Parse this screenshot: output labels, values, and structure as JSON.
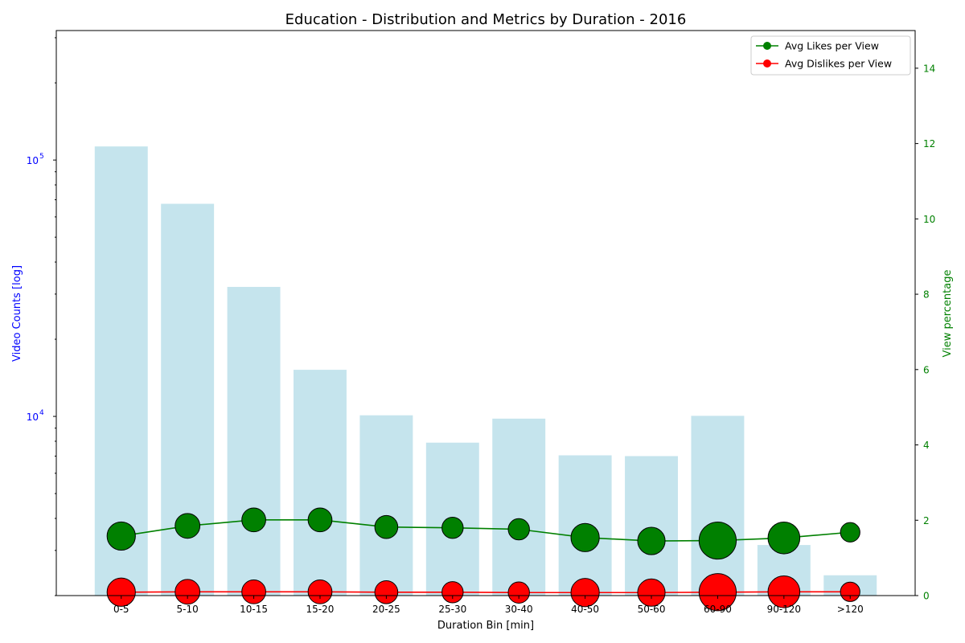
{
  "chart_data": {
    "type": "bar",
    "title": "Education - Distribution and Metrics by Duration - 2016",
    "xlabel": "Duration Bin [min]",
    "ylabel_left": "Video Counts [log]",
    "ylabel_right": "View percentage",
    "left_axis": {
      "scale": "log",
      "ylim": [
        2000,
        320000
      ],
      "major_ticks": [
        10000,
        100000
      ],
      "major_tick_labels": [
        {
          "base": "10",
          "exp": "4"
        },
        {
          "base": "10",
          "exp": "5"
        }
      ],
      "color": "#0000ff"
    },
    "right_axis": {
      "scale": "linear",
      "ylim": [
        0,
        15
      ],
      "ticks": [
        0,
        2,
        4,
        6,
        8,
        10,
        12,
        14
      ],
      "tick_labels": [
        "0",
        "2",
        "4",
        "6",
        "8",
        "10",
        "12",
        "14"
      ],
      "color": "#008000"
    },
    "categories": [
      "0-5",
      "5-10",
      "10-15",
      "15-20",
      "20-25",
      "25-30",
      "30-40",
      "40-50",
      "50-60",
      "60-90",
      "90-120",
      ">120"
    ],
    "bars": {
      "name": "Video Counts",
      "color": "#add8e6",
      "values": [
        113000,
        67500,
        32000,
        15200,
        10100,
        7900,
        9800,
        7050,
        7000,
        10050,
        3150,
        2400
      ]
    },
    "series": [
      {
        "name": "Avg Likes per View",
        "color": "#008000",
        "values": [
          1.58,
          1.85,
          2.01,
          2.01,
          1.82,
          1.8,
          1.76,
          1.54,
          1.45,
          1.46,
          1.53,
          1.68
        ],
        "marker_weight": [
          1.6,
          1.4,
          1.35,
          1.35,
          1.3,
          1.2,
          1.2,
          1.6,
          1.55,
          2.1,
          1.8,
          1.1
        ]
      },
      {
        "name": "Avg Dislikes per View",
        "color": "#ff0000",
        "values": [
          0.09,
          0.1,
          0.1,
          0.1,
          0.09,
          0.09,
          0.08,
          0.08,
          0.08,
          0.09,
          0.1,
          0.1
        ],
        "marker_weight": [
          1.6,
          1.4,
          1.35,
          1.35,
          1.3,
          1.2,
          1.2,
          1.6,
          1.55,
          2.1,
          1.8,
          1.1
        ]
      }
    ],
    "legend": {
      "placement": "top-right",
      "entries": [
        "Avg Likes per View",
        "Avg Dislikes per View"
      ]
    }
  }
}
